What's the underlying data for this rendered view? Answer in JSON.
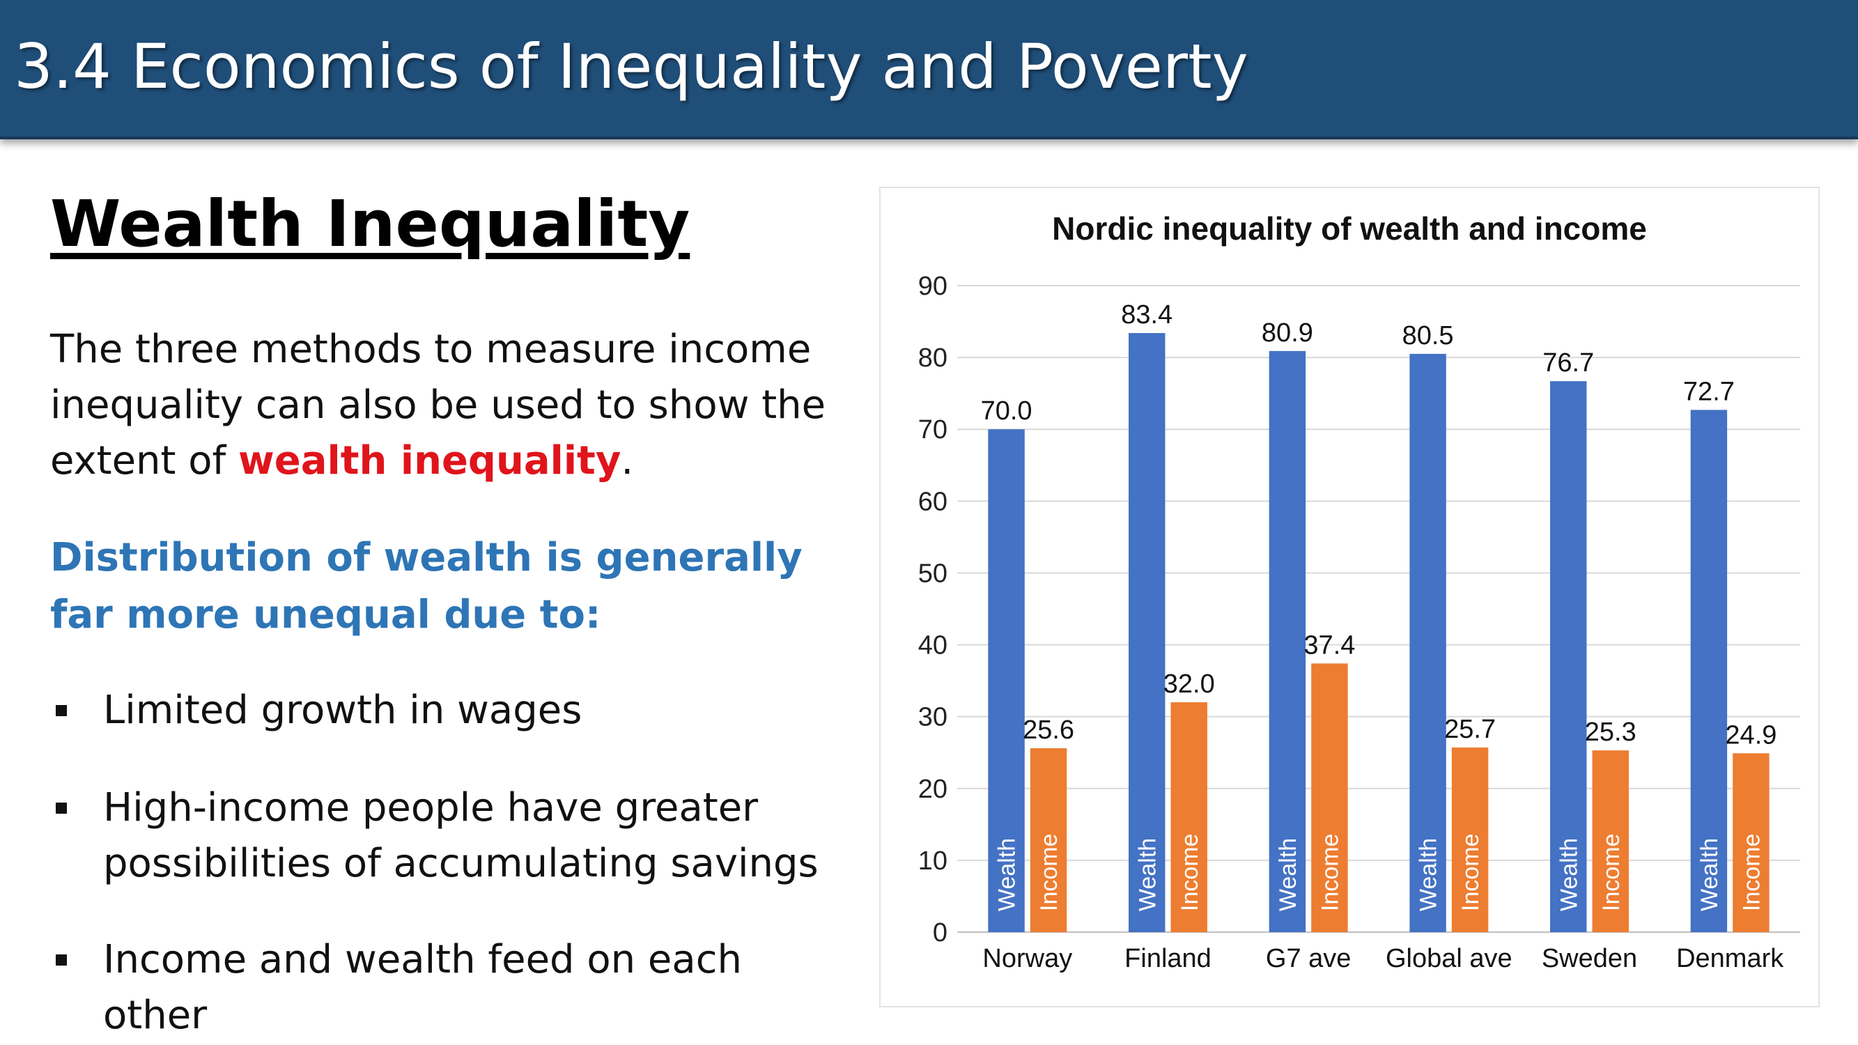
{
  "slide": {
    "title": "3.4 Economics of Inequality and Poverty",
    "heading": "Wealth Inequality",
    "para_part1": "The three methods to measure income inequality can also be used to show the extent of ",
    "para_highlight": "wealth inequality",
    "para_end": ".",
    "subheading": "Distribution of wealth is generally far more unequal due to:",
    "bullets": [
      "Limited growth in wages",
      "High-income people have greater possibilities of accumulating savings",
      "Income and wealth feed on each other"
    ]
  },
  "colors": {
    "title_bar": "#1f4e79",
    "subheading": "#2e75b6",
    "highlight": "#e0141b",
    "wealth_series": "#4472c4",
    "income_series": "#ed7d31"
  },
  "chart_data": {
    "type": "bar",
    "title": "Nordic inequality of wealth and income",
    "categories": [
      "Norway",
      "Finland",
      "G7 ave",
      "Global ave",
      "Sweden",
      "Denmark"
    ],
    "series": [
      {
        "name": "Wealth",
        "values": [
          70.0,
          83.4,
          80.9,
          80.5,
          76.7,
          72.7
        ]
      },
      {
        "name": "Income",
        "values": [
          25.6,
          32.0,
          37.4,
          25.7,
          25.3,
          24.9
        ]
      }
    ],
    "ylim": [
      0,
      90
    ],
    "yticks": [
      0,
      10,
      20,
      30,
      40,
      50,
      60,
      70,
      80,
      90
    ],
    "grid": true,
    "legend": "none"
  }
}
